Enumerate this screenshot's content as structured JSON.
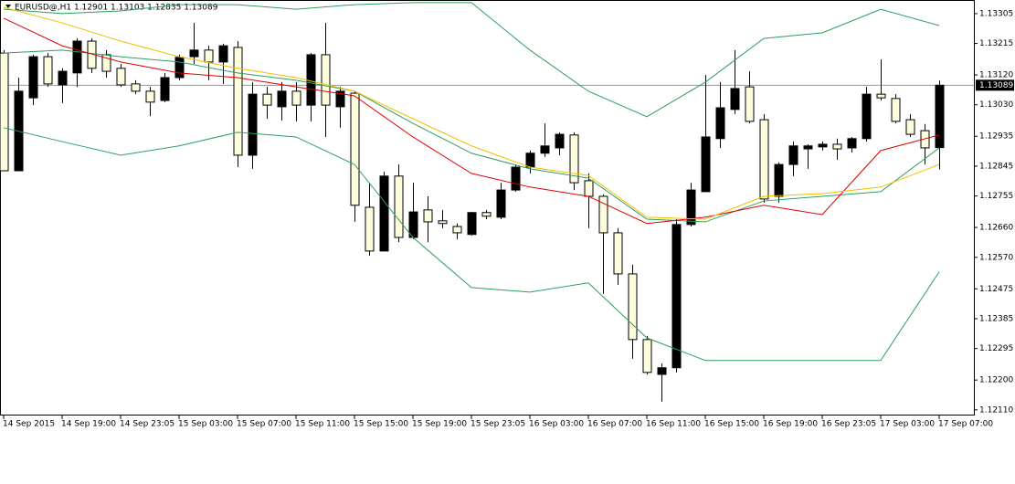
{
  "chart_data": {
    "type": "candlestick",
    "title": "EURUSD@,H1  1.12901 1.13103 1.12835 1.13089",
    "categories": [
      "14 Sep 2015",
      null,
      null,
      null,
      "14 Sep 19:00",
      null,
      null,
      null,
      "14 Sep 23:05",
      null,
      null,
      null,
      "15 Sep 03:00",
      null,
      null,
      null,
      "15 Sep 07:00",
      null,
      null,
      null,
      "15 Sep 11:00",
      null,
      null,
      null,
      "15 Sep 15:00",
      null,
      null,
      null,
      "15 Sep 19:00",
      null,
      null,
      null,
      "15 Sep 23:05",
      null,
      null,
      null,
      "16 Sep 03:00",
      null,
      null,
      null,
      "16 Sep 07:00",
      null,
      null,
      null,
      "16 Sep 11:00",
      null,
      null,
      null,
      "16 Sep 15:00",
      null,
      null,
      null,
      "16 Sep 19:00",
      null,
      null,
      null,
      "16 Sep 23:05",
      null,
      null,
      null,
      "17 Sep 03:00",
      null,
      null,
      null,
      "17 Sep 07:00"
    ],
    "open": [
      1.13186,
      1.12831,
      1.13051,
      1.13175,
      1.1309,
      1.13126,
      1.13222,
      1.13181,
      1.1314,
      1.13093,
      1.13071,
      1.13043,
      1.13112,
      1.13175,
      1.13195,
      1.13159,
      1.13203,
      1.12878,
      1.13062,
      1.13024,
      1.13071,
      1.13029,
      1.13181,
      1.13024,
      1.13065,
      1.12721,
      1.12589,
      1.12815,
      1.1263,
      1.12713,
      1.1268,
      1.12663,
      1.12639,
      1.12705,
      1.12691,
      1.12773,
      1.12842,
      1.12884,
      1.129,
      1.12939,
      1.12801,
      1.12754,
      1.12644,
      1.1252,
      1.12322,
      1.12217,
      1.12237,
      1.12669,
      1.12768,
      1.12928,
      1.13016,
      1.13084,
      1.12985,
      1.12754,
      1.1285,
      1.12897,
      1.12903,
      1.12911,
      1.129,
      1.12928,
      1.13062,
      1.13049,
      1.12985,
      1.12952,
      1.12901
    ],
    "high": [
      1.13195,
      1.13112,
      1.13181,
      1.13186,
      1.1314,
      1.1323,
      1.1323,
      1.13195,
      1.13153,
      1.13104,
      1.13084,
      1.13126,
      1.13181,
      1.13277,
      1.13208,
      1.13214,
      1.13222,
      1.13098,
      1.13084,
      1.13098,
      1.13098,
      1.13186,
      1.13277,
      1.13084,
      1.13071,
      1.12795,
      1.12828,
      1.1285,
      1.12795,
      1.12754,
      1.12713,
      1.12672,
      1.12707,
      1.12713,
      1.12795,
      1.1285,
      1.12892,
      1.12974,
      1.12947,
      1.12947,
      1.12823,
      1.1276,
      1.12658,
      1.12548,
      1.12333,
      1.1225,
      1.12685,
      1.12795,
      1.1312,
      1.13098,
      1.13195,
      1.13131,
      1.13002,
      1.12856,
      1.12919,
      1.12911,
      1.12919,
      1.12928,
      1.12933,
      1.13084,
      1.13167,
      1.13062,
      1.13002,
      1.12972,
      1.13103
    ],
    "low": [
      1.12831,
      1.12831,
      1.13029,
      1.13084,
      1.13035,
      1.13084,
      1.13126,
      1.13112,
      1.13084,
      1.13062,
      1.12996,
      1.13038,
      1.13104,
      1.13153,
      1.13104,
      1.13093,
      1.12842,
      1.12837,
      1.12988,
      1.12983,
      1.1298,
      1.1298,
      1.12933,
      1.12961,
      1.12677,
      1.12575,
      1.12589,
      1.12616,
      1.12625,
      1.12616,
      1.12658,
      1.12625,
      1.12636,
      1.12685,
      1.12685,
      1.12768,
      1.12823,
      1.12873,
      1.12878,
      1.12773,
      1.12658,
      1.1246,
      1.12487,
      1.12264,
      1.12217,
      1.12135,
      1.12223,
      1.12663,
      1.12768,
      1.129,
      1.13002,
      1.12974,
      1.12735,
      1.12735,
      1.12815,
      1.12837,
      1.12892,
      1.12864,
      1.12886,
      1.12919,
      1.13043,
      1.12974,
      1.12933,
      1.1285,
      1.12835
    ],
    "close": [
      1.12831,
      1.13071,
      1.13175,
      1.13093,
      1.13131,
      1.13222,
      1.1314,
      1.13131,
      1.1309,
      1.13071,
      1.13038,
      1.13112,
      1.13173,
      1.13195,
      1.13159,
      1.13208,
      1.12878,
      1.13062,
      1.13029,
      1.13071,
      1.13029,
      1.13181,
      1.13029,
      1.13071,
      1.12727,
      1.12589,
      1.12815,
      1.1263,
      1.12707,
      1.12677,
      1.12672,
      1.12644,
      1.12705,
      1.12694,
      1.12773,
      1.12842,
      1.12884,
      1.12906,
      1.12941,
      1.12795,
      1.12754,
      1.12644,
      1.1252,
      1.12322,
      1.12223,
      1.12237,
      1.12669,
      1.12773,
      1.12933,
      1.13021,
      1.13079,
      1.1298,
      1.12746,
      1.1285,
      1.12906,
      1.12906,
      1.12911,
      1.12897,
      1.12928,
      1.13062,
      1.13051,
      1.1298,
      1.12941,
      1.129,
      1.13089
    ],
    "up_color": "#000000",
    "down_color": "#ffffe0",
    "lines": [
      {
        "color": "#2e9e5e",
        "x": [
          0,
          4,
          8,
          12,
          16,
          20,
          24,
          28,
          32,
          36,
          40,
          44,
          48,
          52,
          56,
          60,
          64
        ],
        "values": [
          1.13318,
          1.13305,
          1.13313,
          1.13332,
          1.13332,
          1.13318,
          1.13332,
          1.13338,
          1.13338,
          1.13195,
          1.13071,
          1.12994,
          1.13098,
          1.1323,
          1.13247,
          1.13318,
          1.13269
        ]
      },
      {
        "color": "#2e9e5e",
        "x": [
          0,
          4,
          8,
          12,
          16,
          20,
          24,
          28,
          32,
          36,
          40,
          44,
          48,
          52,
          56,
          60,
          64
        ],
        "values": [
          1.13186,
          1.13195,
          1.13175,
          1.13159,
          1.13126,
          1.13104,
          1.13071,
          1.12974,
          1.12884,
          1.12837,
          1.12809,
          1.12685,
          1.12677,
          1.1274,
          1.12754,
          1.12768,
          1.129
        ]
      },
      {
        "color": "#2e9e5e",
        "x": [
          0,
          4,
          8,
          12,
          16,
          20,
          24,
          28,
          32,
          36,
          40,
          44,
          48,
          52,
          56,
          60,
          64
        ],
        "values": [
          1.12961,
          1.12919,
          1.12878,
          1.12906,
          1.12947,
          1.12933,
          1.1285,
          1.1263,
          1.12479,
          1.12465,
          1.12493,
          1.12327,
          1.12259,
          1.12259,
          1.12259,
          1.12259,
          1.12526
        ]
      },
      {
        "color": "#e00000",
        "x": [
          0,
          4,
          8,
          12,
          16,
          20,
          24,
          28,
          32,
          36,
          40,
          44,
          48,
          52,
          56,
          60,
          64
        ],
        "values": [
          1.13291,
          1.13208,
          1.13159,
          1.13126,
          1.13112,
          1.13084,
          1.13057,
          1.12933,
          1.12823,
          1.12782,
          1.12754,
          1.12672,
          1.12691,
          1.12727,
          1.12699,
          1.12892,
          1.12939
        ]
      },
      {
        "color": "#f0c000",
        "x": [
          0,
          4,
          8,
          12,
          16,
          20,
          24,
          28,
          32,
          36,
          40,
          44,
          48,
          52,
          56,
          60,
          64
        ],
        "values": [
          1.13324,
          1.13277,
          1.13222,
          1.13175,
          1.1314,
          1.13112,
          1.13071,
          1.12988,
          1.12906,
          1.12842,
          1.12817,
          1.12691,
          1.12685,
          1.12754,
          1.12762,
          1.12782,
          1.1285
        ]
      }
    ],
    "current_price": 1.13089,
    "ylim": [
      1.12093,
      1.13346
    ],
    "yticks": [
      1.13305,
      1.13215,
      {
        "value": 1.1312,
        "label": "1.13120"
      },
      {
        "value": 1.1303,
        "label": "1.13030"
      },
      1.12935,
      1.12845,
      1.12755,
      {
        "value": 1.1266,
        "label": "1.12660"
      },
      {
        "value": 1.1257,
        "label": "1.12570"
      },
      1.12475,
      1.12385,
      1.12295,
      {
        "value": 1.122,
        "label": "1.12200"
      },
      {
        "value": 1.1211,
        "label": "1.12110"
      }
    ]
  }
}
